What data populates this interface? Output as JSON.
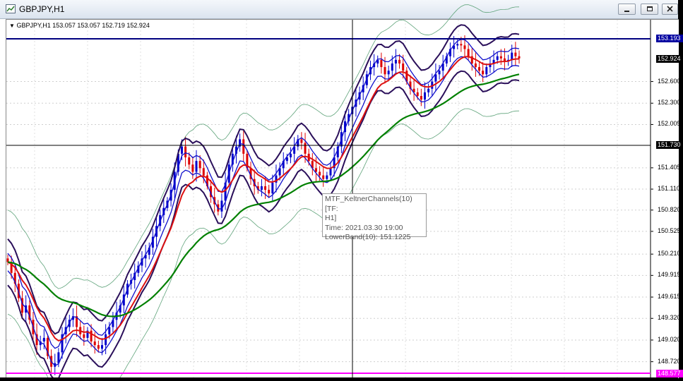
{
  "window": {
    "title": "GBPJPY,H1"
  },
  "chart": {
    "symbol_info": "GBPJPY,H1  153.057 153.057 152.719 152.924",
    "price_levels": [
      "152.600",
      "152.300",
      "152.005",
      "151.405",
      "151.110",
      "150.820",
      "150.525",
      "150.210",
      "149.915",
      "149.615",
      "149.320",
      "149.020",
      "148.720"
    ],
    "tags": {
      "hline_top": "153.193",
      "last_price": "152.924",
      "crosshair": "151.730",
      "hline_bottom": "148.577"
    },
    "tooltip": {
      "line1": "MTF_KeltnerChannels(10)[TF:",
      "line2": "H1]",
      "line3": "Time: 2021.03.30 19:00",
      "line4": "LowerBand(10): 151.1225"
    },
    "colors": {
      "up_candle": "#0000cc",
      "down_candle": "#dd0000",
      "keltner_band": "#2a0f5a",
      "keltner_mid": "#1010cc",
      "ema": "#dd1010",
      "long_ma": "#008000",
      "bollinger": "#5fa37a",
      "hline_top": "#000080",
      "hline_bottom": "#ff00ff"
    }
  },
  "chart_data": {
    "type": "candlestick",
    "symbol": "GBPJPY",
    "timeframe": "H1",
    "y_axis_range": [
      148.57,
      153.26
    ],
    "closes": [
      150.1,
      149.95,
      149.8,
      149.6,
      149.4,
      149.5,
      149.3,
      149.1,
      148.95,
      149.0,
      149.05,
      148.8,
      148.65,
      148.7,
      148.85,
      149.1,
      149.2,
      149.3,
      149.35,
      149.2,
      149.1,
      149.05,
      149.15,
      149.0,
      148.95,
      148.9,
      148.95,
      149.1,
      149.2,
      149.3,
      149.4,
      149.5,
      149.65,
      149.8,
      149.85,
      149.95,
      150.05,
      150.15,
      150.2,
      150.3,
      150.45,
      150.6,
      150.75,
      150.85,
      150.95,
      151.1,
      151.35,
      151.6,
      151.7,
      151.55,
      151.45,
      151.35,
      151.5,
      151.4,
      151.3,
      151.15,
      151.0,
      150.9,
      150.8,
      150.95,
      151.2,
      151.45,
      151.6,
      151.7,
      151.8,
      151.6,
      151.4,
      151.25,
      151.15,
      151.1,
      151.15,
      151.1,
      151.05,
      151.2,
      151.3,
      151.4,
      151.5,
      151.55,
      151.6,
      151.7,
      151.8,
      151.75,
      151.6,
      151.5,
      151.4,
      151.35,
      151.3,
      151.25,
      151.3,
      151.4,
      151.55,
      151.7,
      151.9,
      152.05,
      152.15,
      152.25,
      152.35,
      152.45,
      152.55,
      152.7,
      152.8,
      152.85,
      152.9,
      152.8,
      152.7,
      152.75,
      152.85,
      152.9,
      152.85,
      152.75,
      152.6,
      152.5,
      152.45,
      152.4,
      152.35,
      152.45,
      152.5,
      152.6,
      152.7,
      152.75,
      152.85,
      152.95,
      153.05,
      153.1,
      153.12,
      153.1,
      153.05,
      152.95,
      152.85,
      152.8,
      152.75,
      152.7,
      152.8,
      152.85,
      152.9,
      152.95,
      152.92,
      152.88,
      152.9,
      153.0,
      152.95,
      152.92
    ]
  }
}
